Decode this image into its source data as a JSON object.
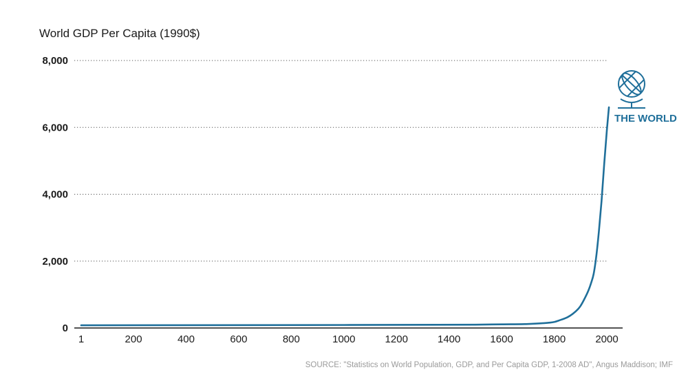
{
  "chart_data": {
    "type": "line",
    "title": "World GDP Per Capita (1990$)",
    "xlabel": "",
    "ylabel": "",
    "xlim": [
      1,
      2008
    ],
    "ylim": [
      0,
      8000
    ],
    "x_ticks": [
      1,
      200,
      400,
      600,
      800,
      1000,
      1200,
      1400,
      1600,
      1800,
      2000
    ],
    "y_ticks": [
      0,
      2000,
      4000,
      6000,
      8000
    ],
    "y_tick_labels": [
      "0",
      "2,000",
      "4,000",
      "6,000",
      "8,000"
    ],
    "grid": "horizontal dotted",
    "series": [
      {
        "name": "THE WORLD",
        "color": "#1f6f9a",
        "x": [
          1,
          1000,
          1500,
          1600,
          1700,
          1750,
          1800,
          1820,
          1850,
          1870,
          1890,
          1900,
          1913,
          1930,
          1940,
          1950,
          1960,
          1970,
          1980,
          1990,
          2000,
          2008
        ],
        "values": [
          80,
          90,
          100,
          110,
          120,
          140,
          180,
          230,
          320,
          420,
          560,
          660,
          840,
          1120,
          1340,
          1620,
          2150,
          2900,
          3800,
          4900,
          5900,
          6600
        ]
      }
    ],
    "series_icon": "globe-icon"
  },
  "source": "SOURCE: \"Statistics on World Population, GDP, and Per Capita GDP, 1-2008 AD\", Angus Maddison; IMF"
}
